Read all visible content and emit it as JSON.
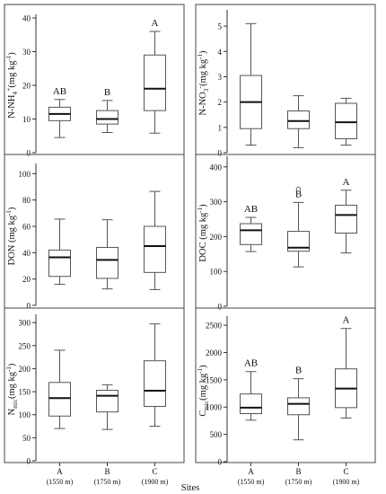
{
  "sites_label": "Sites",
  "chart_data": [
    {
      "type": "boxplot",
      "ylabel_html": "N-NH4+ (mg kg-1)",
      "ylabel": {
        "main": "N-NH",
        "sub": "4",
        "sup": "+",
        "unit": " (mg kg",
        "unit_sup": "-1",
        "close": ")"
      },
      "ylim": [
        0,
        40
      ],
      "yticks": [
        0,
        10,
        20,
        30,
        40
      ],
      "categories": [
        "A",
        "B",
        "C"
      ],
      "boxes": [
        {
          "min": 4.5,
          "q1": 9.5,
          "median": 11.5,
          "q3": 13.5,
          "max": 15.8,
          "letter": "AB"
        },
        {
          "min": 6,
          "q1": 8.5,
          "median": 10,
          "q3": 12.5,
          "max": 15.5,
          "letter": "B"
        },
        {
          "min": 5.8,
          "q1": 12.5,
          "median": 19,
          "q3": 29,
          "max": 36,
          "letter": "A"
        }
      ],
      "outliers": []
    },
    {
      "type": "boxplot",
      "ylabel": {
        "main": "N-NO",
        "sub": "3",
        "sup": "-",
        "unit": " (mg kg",
        "unit_sup": "-1",
        "close": ")"
      },
      "ylim": [
        0,
        5.5
      ],
      "yticks": [
        0,
        1,
        2,
        3,
        4,
        5
      ],
      "categories": [
        "A",
        "B",
        "C"
      ],
      "boxes": [
        {
          "min": 0.3,
          "q1": 0.95,
          "median": 2.0,
          "q3": 3.05,
          "max": 5.1,
          "letter": ""
        },
        {
          "min": 0.2,
          "q1": 0.95,
          "median": 1.25,
          "q3": 1.65,
          "max": 2.25,
          "letter": ""
        },
        {
          "min": 0.3,
          "q1": 0.55,
          "median": 1.2,
          "q3": 1.95,
          "max": 2.15,
          "letter": ""
        }
      ],
      "outliers": []
    },
    {
      "type": "boxplot",
      "ylabel": {
        "main": "DON",
        "sub": "",
        "sup": "",
        "unit": " (mg kg",
        "unit_sup": "-1",
        "close": ")"
      },
      "ylim": [
        0,
        105
      ],
      "yticks": [
        0,
        20,
        40,
        60,
        80,
        100
      ],
      "categories": [
        "A",
        "B",
        "C"
      ],
      "boxes": [
        {
          "min": 16,
          "q1": 22,
          "median": 36.5,
          "q3": 42,
          "max": 65.5,
          "letter": ""
        },
        {
          "min": 12.5,
          "q1": 20.5,
          "median": 34.5,
          "q3": 44,
          "max": 65,
          "letter": ""
        },
        {
          "min": 12,
          "q1": 25,
          "median": 45,
          "q3": 60,
          "max": 86.5,
          "letter": ""
        }
      ],
      "outliers": []
    },
    {
      "type": "boxplot",
      "ylabel": {
        "main": "DOC",
        "sub": "",
        "sup": "",
        "unit": " (mg kg",
        "unit_sup": "-1",
        "close": ")"
      },
      "ylim": [
        0,
        420
      ],
      "yticks": [
        0,
        100,
        200,
        300,
        400
      ],
      "categories": [
        "A",
        "B",
        "C"
      ],
      "boxes": [
        {
          "min": 157,
          "q1": 177,
          "median": 218,
          "q3": 237,
          "max": 255,
          "letter": "AB"
        },
        {
          "min": 113,
          "q1": 158,
          "median": 168,
          "q3": 215,
          "max": 298,
          "letter": "B"
        },
        {
          "min": 153,
          "q1": 210,
          "median": 262,
          "q3": 290,
          "max": 333,
          "letter": "A"
        }
      ],
      "outliers": [
        {
          "box": 1,
          "value": 336
        }
      ]
    },
    {
      "type": "boxplot",
      "ylabel": {
        "main": "N",
        "sub": "mic",
        "sup": "",
        "unit": " (mg kg",
        "unit_sup": "-1",
        "close": ")"
      },
      "ylim": [
        0,
        310
      ],
      "yticks": [
        0,
        50,
        100,
        150,
        200,
        250,
        300
      ],
      "categories": [
        "A",
        "B",
        "C"
      ],
      "boxes": [
        {
          "min": 70,
          "q1": 97,
          "median": 136,
          "q3": 170,
          "max": 240,
          "letter": ""
        },
        {
          "min": 68,
          "q1": 106,
          "median": 141,
          "q3": 153,
          "max": 165,
          "letter": ""
        },
        {
          "min": 75,
          "q1": 118,
          "median": 152,
          "q3": 217,
          "max": 297,
          "letter": ""
        }
      ],
      "outliers": []
    },
    {
      "type": "boxplot",
      "ylabel": {
        "main": "C",
        "sub": "mic",
        "sup": "",
        "unit": " (mg kg",
        "unit_sup": "-1",
        "close": ")"
      },
      "ylim": [
        0,
        2600
      ],
      "yticks": [
        0,
        500,
        1000,
        1500,
        2000,
        2500
      ],
      "categories": [
        "A",
        "B",
        "C"
      ],
      "boxes": [
        {
          "min": 760,
          "q1": 880,
          "median": 990,
          "q3": 1240,
          "max": 1650,
          "letter": "AB"
        },
        {
          "min": 400,
          "q1": 860,
          "median": 1060,
          "q3": 1170,
          "max": 1520,
          "letter": "B"
        },
        {
          "min": 800,
          "q1": 990,
          "median": 1340,
          "q3": 1700,
          "max": 2440,
          "letter": "A"
        }
      ],
      "outliers": []
    }
  ],
  "x_axis": {
    "sites": [
      "A",
      "B",
      "C"
    ],
    "elevations": [
      "(1550 m)",
      "(1750 m)",
      "(1900 m)"
    ]
  }
}
